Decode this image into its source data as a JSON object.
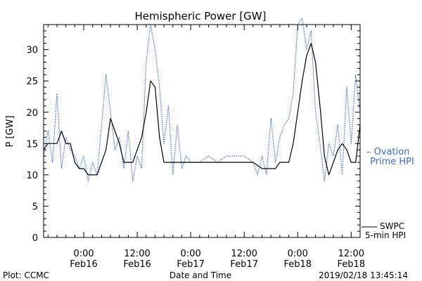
{
  "chart_data": {
    "type": "line",
    "title": "Hemispheric Power [GW]",
    "xlabel": "Date and Time",
    "ylabel": "P [GW]",
    "ylim": [
      0,
      34
    ],
    "yticks": [
      0,
      5,
      10,
      15,
      20,
      25,
      30
    ],
    "xlim": [
      "2019-02-15T15:00",
      "2019-02-18T14:00"
    ],
    "xticks": [
      {
        "time": "2019-02-16T00:00",
        "line1": "0:00",
        "line2": "Feb16"
      },
      {
        "time": "2019-02-16T12:00",
        "line1": "12:00",
        "line2": "Feb16"
      },
      {
        "time": "2019-02-17T00:00",
        "line1": "0:00",
        "line2": "Feb17"
      },
      {
        "time": "2019-02-17T12:00",
        "line1": "12:00",
        "line2": "Feb17"
      },
      {
        "time": "2019-02-18T00:00",
        "line1": "0:00",
        "line2": "Feb18"
      },
      {
        "time": "2019-02-18T12:00",
        "line1": "12:00",
        "line2": "Feb18"
      }
    ],
    "grid": false,
    "legend_position": "right",
    "series": [
      {
        "name": "SWPC 5-min HPI",
        "label_lines": [
          "SWPC",
          "5-min HPI"
        ],
        "color": "#000000",
        "style": "solid",
        "x": [
          "2019-02-15T15:00",
          "2019-02-15T16:00",
          "2019-02-15T18:00",
          "2019-02-15T19:00",
          "2019-02-15T20:00",
          "2019-02-15T21:00",
          "2019-02-15T22:00",
          "2019-02-15T23:00",
          "2019-02-16T00:00",
          "2019-02-16T01:00",
          "2019-02-16T03:00",
          "2019-02-16T04:00",
          "2019-02-16T05:00",
          "2019-02-16T06:00",
          "2019-02-16T07:00",
          "2019-02-16T08:00",
          "2019-02-16T09:00",
          "2019-02-16T10:00",
          "2019-02-16T11:00",
          "2019-02-16T12:00",
          "2019-02-16T13:00",
          "2019-02-16T14:00",
          "2019-02-16T15:00",
          "2019-02-16T16:00",
          "2019-02-16T17:00",
          "2019-02-16T18:00",
          "2019-02-16T19:00",
          "2019-02-16T20:00",
          "2019-02-16T21:00",
          "2019-02-17T00:00",
          "2019-02-17T06:00",
          "2019-02-17T12:00",
          "2019-02-17T14:00",
          "2019-02-17T16:00",
          "2019-02-17T18:00",
          "2019-02-17T19:00",
          "2019-02-17T20:00",
          "2019-02-17T21:00",
          "2019-02-17T22:00",
          "2019-02-17T23:00",
          "2019-02-18T00:00",
          "2019-02-18T01:00",
          "2019-02-18T02:00",
          "2019-02-18T03:00",
          "2019-02-18T04:00",
          "2019-02-18T05:00",
          "2019-02-18T06:00",
          "2019-02-18T07:00",
          "2019-02-18T08:00",
          "2019-02-18T09:00",
          "2019-02-18T10:00",
          "2019-02-18T11:00",
          "2019-02-18T12:00",
          "2019-02-18T13:00",
          "2019-02-18T14:00"
        ],
        "y": [
          14,
          15,
          15,
          17,
          15,
          15,
          12,
          11,
          11,
          10,
          10,
          12,
          14,
          19,
          17,
          15,
          12,
          12,
          12,
          14,
          16,
          20,
          25,
          24,
          16,
          12,
          12,
          12,
          12,
          12,
          12,
          12,
          12,
          11,
          11,
          11,
          12,
          12,
          12,
          15,
          20,
          25,
          29,
          31,
          28,
          21,
          13,
          10,
          12,
          14,
          15,
          14,
          12,
          12,
          18
        ]
      },
      {
        "name": "Ovation Prime HPI",
        "label_lines": [
          "– Ovation",
          "Prime HPI"
        ],
        "color": "#3a6fd0",
        "style": "dotted",
        "x": [
          "2019-02-15T15:00",
          "2019-02-15T16:00",
          "2019-02-15T17:00",
          "2019-02-15T18:00",
          "2019-02-15T19:00",
          "2019-02-15T20:00",
          "2019-02-15T21:00",
          "2019-02-15T22:00",
          "2019-02-15T23:00",
          "2019-02-16T00:00",
          "2019-02-16T01:00",
          "2019-02-16T02:00",
          "2019-02-16T03:00",
          "2019-02-16T04:00",
          "2019-02-16T05:00",
          "2019-02-16T06:00",
          "2019-02-16T07:00",
          "2019-02-16T08:00",
          "2019-02-16T09:00",
          "2019-02-16T10:00",
          "2019-02-16T11:00",
          "2019-02-16T12:00",
          "2019-02-16T13:00",
          "2019-02-16T14:00",
          "2019-02-16T15:00",
          "2019-02-16T16:00",
          "2019-02-16T17:00",
          "2019-02-16T18:00",
          "2019-02-16T19:00",
          "2019-02-16T20:00",
          "2019-02-16T21:00",
          "2019-02-16T22:00",
          "2019-02-16T23:00",
          "2019-02-17T00:00",
          "2019-02-17T02:00",
          "2019-02-17T04:00",
          "2019-02-17T06:00",
          "2019-02-17T08:00",
          "2019-02-17T10:00",
          "2019-02-17T12:00",
          "2019-02-17T14:00",
          "2019-02-17T15:00",
          "2019-02-17T16:00",
          "2019-02-17T17:00",
          "2019-02-17T18:00",
          "2019-02-17T19:00",
          "2019-02-17T20:00",
          "2019-02-17T21:00",
          "2019-02-17T22:00",
          "2019-02-17T23:00",
          "2019-02-18T00:00",
          "2019-02-18T01:00",
          "2019-02-18T02:00",
          "2019-02-18T03:00",
          "2019-02-18T04:00",
          "2019-02-18T05:00",
          "2019-02-18T06:00",
          "2019-02-18T07:00",
          "2019-02-18T08:00",
          "2019-02-18T09:00",
          "2019-02-18T10:00",
          "2019-02-18T11:00",
          "2019-02-18T12:00",
          "2019-02-18T13:00",
          "2019-02-18T14:00"
        ],
        "y": [
          13,
          17,
          12,
          23,
          11,
          16,
          14,
          13,
          11,
          13,
          9,
          12,
          10,
          18,
          26,
          20,
          14,
          16,
          11,
          17,
          9,
          13,
          11,
          28,
          34,
          30,
          24,
          15,
          21,
          10,
          18,
          11,
          13,
          12,
          12,
          13,
          12,
          13,
          13,
          13,
          12,
          10,
          13,
          10,
          19,
          12,
          16,
          18,
          19,
          23,
          34,
          35,
          30,
          33,
          20,
          15,
          9,
          15,
          13,
          18,
          10,
          24,
          15,
          26,
          20
        ]
      }
    ]
  },
  "footer": {
    "left": "Plot: CCMC",
    "right": "2019/02/18 13:45:14"
  }
}
